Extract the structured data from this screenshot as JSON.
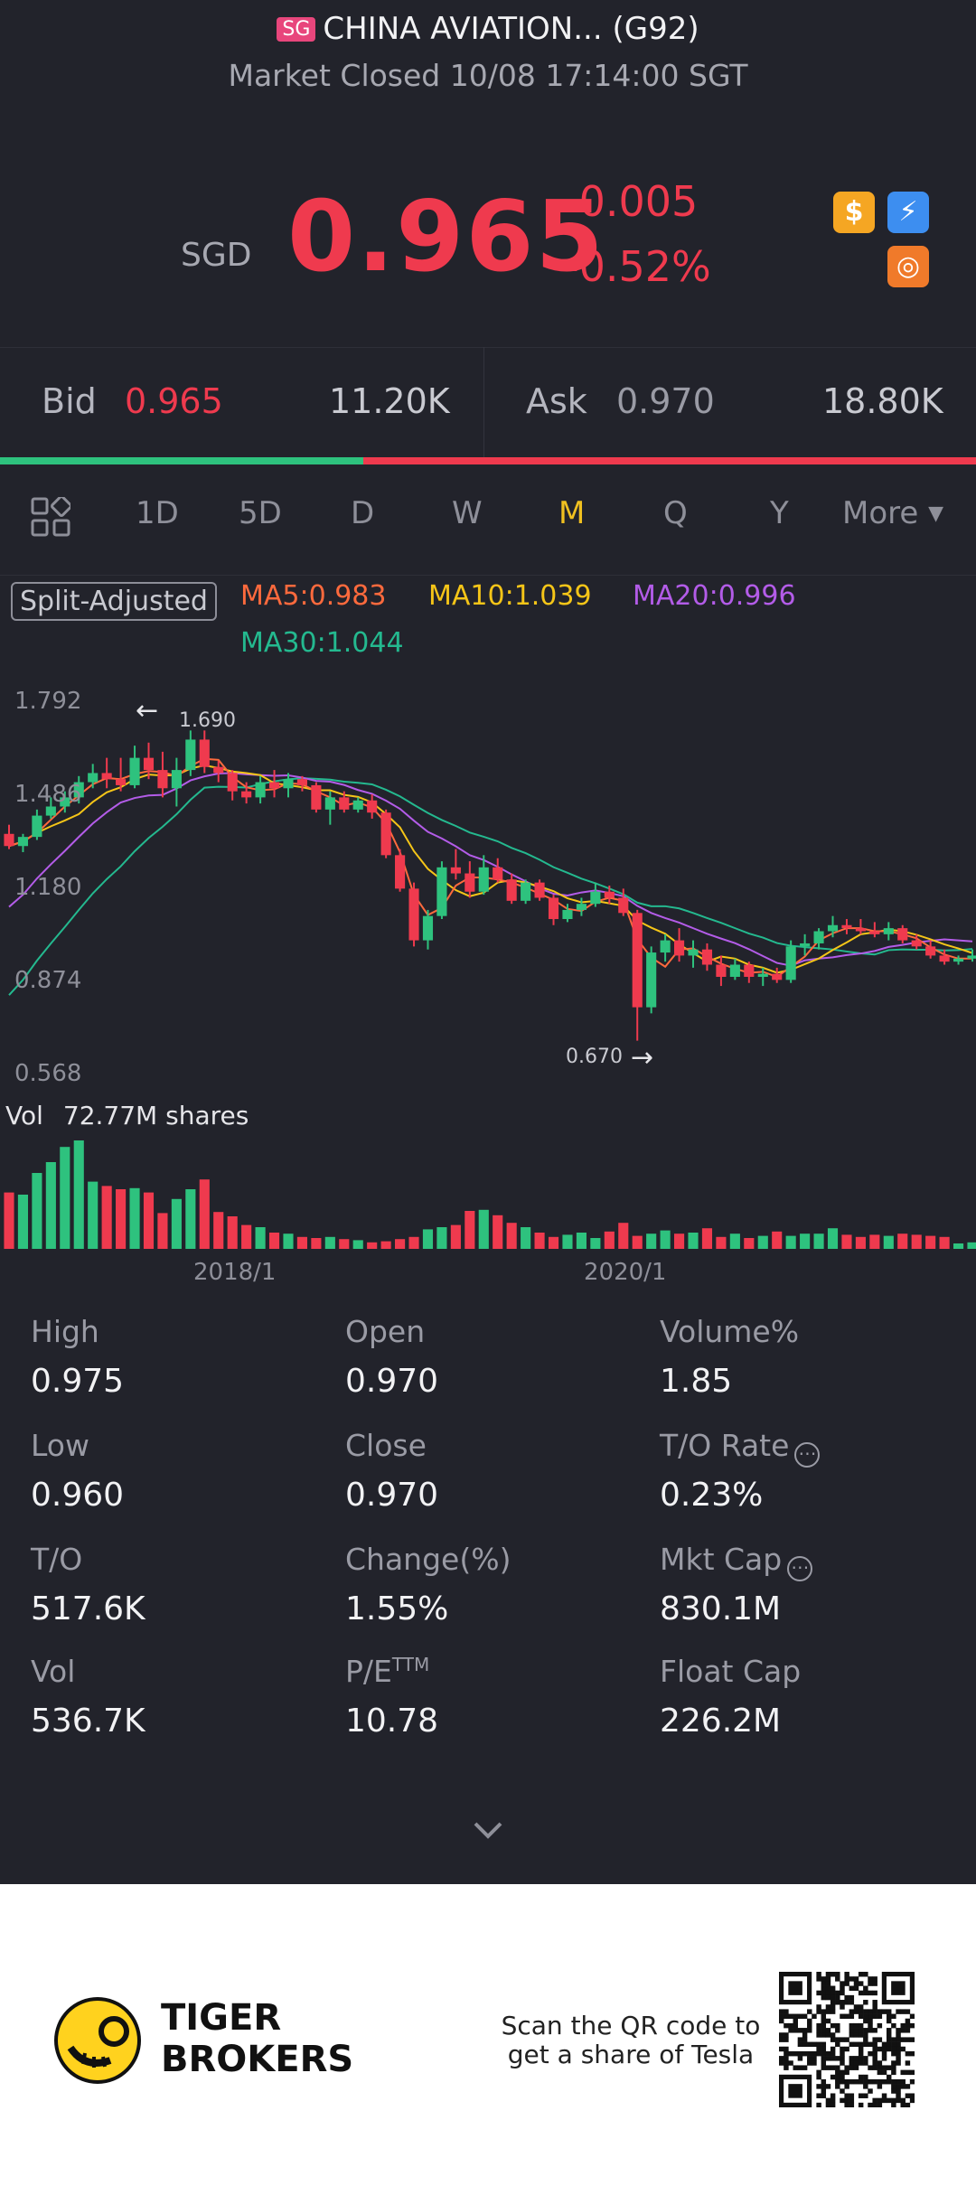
{
  "header": {
    "market_badge": "SG",
    "title": "CHINA AVIATION... (G92)",
    "status": "Market Closed 10/08 17:14:00 SGT"
  },
  "quote": {
    "currency": "SGD",
    "price": "0.965",
    "change": "-0.005",
    "change_pct": "-0.52%",
    "icons": [
      "dollar-icon",
      "flash-icon",
      "chart-switch-icon"
    ],
    "colors": {
      "down": "#ef3a4e",
      "up": "#2ec27e"
    }
  },
  "bidask": {
    "bid_label": "Bid",
    "bid_price": "0.965",
    "bid_size": "11.20K",
    "ask_label": "Ask",
    "ask_price": "0.970",
    "ask_size": "18.80K",
    "bid_ratio": 0.372
  },
  "tabs": {
    "items": [
      "1D",
      "5D",
      "D",
      "W",
      "M",
      "Q",
      "Y"
    ],
    "active": "M",
    "more": "More"
  },
  "indicators": {
    "split": "Split-Adjusted",
    "ma5": "MA5:0.983",
    "ma10": "MA10:1.039",
    "ma20": "MA20:0.996",
    "ma30": "MA30:1.044"
  },
  "chart_data": {
    "type": "candlestick",
    "y_ticks": [
      "1.792",
      "1.486",
      "1.180",
      "0.874",
      "0.568"
    ],
    "ylim": [
      0.568,
      1.792
    ],
    "high_marker": "1.690",
    "low_marker": "0.670",
    "vol_label": "Vol",
    "vol_value": "72.77M shares",
    "x_ticks": [
      "2018/1",
      "2020/1"
    ],
    "candles": [
      {
        "o": 1.35,
        "h": 1.38,
        "l": 1.3,
        "c": 1.31
      },
      {
        "o": 1.31,
        "h": 1.35,
        "l": 1.29,
        "c": 1.34
      },
      {
        "o": 1.34,
        "h": 1.43,
        "l": 1.33,
        "c": 1.41
      },
      {
        "o": 1.41,
        "h": 1.47,
        "l": 1.4,
        "c": 1.44
      },
      {
        "o": 1.44,
        "h": 1.49,
        "l": 1.42,
        "c": 1.47
      },
      {
        "o": 1.47,
        "h": 1.54,
        "l": 1.45,
        "c": 1.52
      },
      {
        "o": 1.52,
        "h": 1.58,
        "l": 1.5,
        "c": 1.55
      },
      {
        "o": 1.55,
        "h": 1.6,
        "l": 1.5,
        "c": 1.53
      },
      {
        "o": 1.53,
        "h": 1.6,
        "l": 1.49,
        "c": 1.51
      },
      {
        "o": 1.51,
        "h": 1.64,
        "l": 1.5,
        "c": 1.6
      },
      {
        "o": 1.6,
        "h": 1.65,
        "l": 1.53,
        "c": 1.56
      },
      {
        "o": 1.56,
        "h": 1.62,
        "l": 1.47,
        "c": 1.5
      },
      {
        "o": 1.5,
        "h": 1.6,
        "l": 1.44,
        "c": 1.56
      },
      {
        "o": 1.56,
        "h": 1.69,
        "l": 1.54,
        "c": 1.66
      },
      {
        "o": 1.66,
        "h": 1.69,
        "l": 1.55,
        "c": 1.57
      },
      {
        "o": 1.57,
        "h": 1.59,
        "l": 1.52,
        "c": 1.55
      },
      {
        "o": 1.55,
        "h": 1.56,
        "l": 1.46,
        "c": 1.49
      },
      {
        "o": 1.49,
        "h": 1.52,
        "l": 1.45,
        "c": 1.47
      },
      {
        "o": 1.47,
        "h": 1.54,
        "l": 1.45,
        "c": 1.52
      },
      {
        "o": 1.52,
        "h": 1.56,
        "l": 1.47,
        "c": 1.5
      },
      {
        "o": 1.5,
        "h": 1.55,
        "l": 1.47,
        "c": 1.53
      },
      {
        "o": 1.53,
        "h": 1.54,
        "l": 1.49,
        "c": 1.51
      },
      {
        "o": 1.51,
        "h": 1.52,
        "l": 1.42,
        "c": 1.43
      },
      {
        "o": 1.43,
        "h": 1.49,
        "l": 1.38,
        "c": 1.47
      },
      {
        "o": 1.47,
        "h": 1.49,
        "l": 1.42,
        "c": 1.43
      },
      {
        "o": 1.43,
        "h": 1.47,
        "l": 1.42,
        "c": 1.46
      },
      {
        "o": 1.46,
        "h": 1.48,
        "l": 1.4,
        "c": 1.42
      },
      {
        "o": 1.42,
        "h": 1.43,
        "l": 1.27,
        "c": 1.28
      },
      {
        "o": 1.28,
        "h": 1.3,
        "l": 1.16,
        "c": 1.17
      },
      {
        "o": 1.17,
        "h": 1.19,
        "l": 0.98,
        "c": 1.0
      },
      {
        "o": 1.0,
        "h": 1.1,
        "l": 0.97,
        "c": 1.08
      },
      {
        "o": 1.08,
        "h": 1.26,
        "l": 1.07,
        "c": 1.24
      },
      {
        "o": 1.24,
        "h": 1.3,
        "l": 1.2,
        "c": 1.22
      },
      {
        "o": 1.22,
        "h": 1.26,
        "l": 1.14,
        "c": 1.16
      },
      {
        "o": 1.16,
        "h": 1.28,
        "l": 1.15,
        "c": 1.24
      },
      {
        "o": 1.24,
        "h": 1.27,
        "l": 1.19,
        "c": 1.2
      },
      {
        "o": 1.2,
        "h": 1.22,
        "l": 1.12,
        "c": 1.13
      },
      {
        "o": 1.13,
        "h": 1.2,
        "l": 1.12,
        "c": 1.19
      },
      {
        "o": 1.19,
        "h": 1.2,
        "l": 1.13,
        "c": 1.14
      },
      {
        "o": 1.14,
        "h": 1.15,
        "l": 1.05,
        "c": 1.07
      },
      {
        "o": 1.07,
        "h": 1.12,
        "l": 1.06,
        "c": 1.1
      },
      {
        "o": 1.1,
        "h": 1.14,
        "l": 1.08,
        "c": 1.12
      },
      {
        "o": 1.12,
        "h": 1.19,
        "l": 1.11,
        "c": 1.16
      },
      {
        "o": 1.16,
        "h": 1.18,
        "l": 1.12,
        "c": 1.14
      },
      {
        "o": 1.14,
        "h": 1.17,
        "l": 1.08,
        "c": 1.09
      },
      {
        "o": 1.09,
        "h": 1.1,
        "l": 0.67,
        "c": 0.78
      },
      {
        "o": 0.78,
        "h": 0.98,
        "l": 0.76,
        "c": 0.96
      },
      {
        "o": 0.96,
        "h": 1.02,
        "l": 0.93,
        "c": 1.0
      },
      {
        "o": 1.0,
        "h": 1.04,
        "l": 0.93,
        "c": 0.95
      },
      {
        "o": 0.95,
        "h": 1.0,
        "l": 0.91,
        "c": 0.97
      },
      {
        "o": 0.97,
        "h": 0.99,
        "l": 0.9,
        "c": 0.92
      },
      {
        "o": 0.92,
        "h": 0.95,
        "l": 0.85,
        "c": 0.88
      },
      {
        "o": 0.88,
        "h": 0.94,
        "l": 0.87,
        "c": 0.92
      },
      {
        "o": 0.92,
        "h": 0.93,
        "l": 0.86,
        "c": 0.88
      },
      {
        "o": 0.88,
        "h": 0.91,
        "l": 0.85,
        "c": 0.89
      },
      {
        "o": 0.89,
        "h": 0.91,
        "l": 0.86,
        "c": 0.87
      },
      {
        "o": 0.87,
        "h": 1.0,
        "l": 0.86,
        "c": 0.98
      },
      {
        "o": 0.98,
        "h": 1.02,
        "l": 0.95,
        "c": 0.99
      },
      {
        "o": 0.99,
        "h": 1.04,
        "l": 0.97,
        "c": 1.03
      },
      {
        "o": 1.03,
        "h": 1.08,
        "l": 1.01,
        "c": 1.05
      },
      {
        "o": 1.05,
        "h": 1.07,
        "l": 1.02,
        "c": 1.04
      },
      {
        "o": 1.04,
        "h": 1.07,
        "l": 1.02,
        "c": 1.03
      },
      {
        "o": 1.03,
        "h": 1.06,
        "l": 1.01,
        "c": 1.02
      },
      {
        "o": 1.02,
        "h": 1.06,
        "l": 1.0,
        "c": 1.04
      },
      {
        "o": 1.04,
        "h": 1.05,
        "l": 0.99,
        "c": 1.0
      },
      {
        "o": 1.0,
        "h": 1.02,
        "l": 0.97,
        "c": 0.98
      },
      {
        "o": 0.98,
        "h": 1.0,
        "l": 0.94,
        "c": 0.95
      },
      {
        "o": 0.95,
        "h": 0.97,
        "l": 0.92,
        "c": 0.93
      },
      {
        "o": 0.93,
        "h": 0.95,
        "l": 0.92,
        "c": 0.94
      },
      {
        "o": 0.94,
        "h": 0.97,
        "l": 0.93,
        "c": 0.95
      }
    ],
    "volumes": [
      0.52,
      0.5,
      0.7,
      0.8,
      0.94,
      1.0,
      0.62,
      0.58,
      0.55,
      0.56,
      0.52,
      0.33,
      0.46,
      0.55,
      0.64,
      0.34,
      0.3,
      0.22,
      0.2,
      0.15,
      0.14,
      0.11,
      0.1,
      0.11,
      0.09,
      0.08,
      0.06,
      0.07,
      0.09,
      0.11,
      0.18,
      0.2,
      0.22,
      0.35,
      0.36,
      0.31,
      0.24,
      0.2,
      0.15,
      0.11,
      0.13,
      0.15,
      0.1,
      0.16,
      0.24,
      0.12,
      0.14,
      0.17,
      0.14,
      0.15,
      0.19,
      0.11,
      0.14,
      0.1,
      0.12,
      0.16,
      0.12,
      0.14,
      0.14,
      0.19,
      0.13,
      0.11,
      0.13,
      0.12,
      0.14,
      0.13,
      0.12,
      0.11,
      0.05,
      0.06
    ],
    "ma_colors": {
      "ma5": "#ff6a3d",
      "ma10": "#f5c518",
      "ma20": "#b35ce8",
      "ma30": "#24b98f"
    }
  },
  "stats": [
    {
      "label": "High",
      "value": "0.975"
    },
    {
      "label": "Open",
      "value": "0.970"
    },
    {
      "label": "Volume%",
      "value": "1.85"
    },
    {
      "label": "Low",
      "value": "0.960"
    },
    {
      "label": "Close",
      "value": "0.970"
    },
    {
      "label": "T/O Rate",
      "value": "0.23%",
      "info": true
    },
    {
      "label": "T/O",
      "value": "517.6K"
    },
    {
      "label": "Change(%)",
      "value": "1.55%"
    },
    {
      "label": "Mkt Cap",
      "value": "830.1M",
      "info": true
    },
    {
      "label": "Vol",
      "value": "536.7K"
    },
    {
      "label": "P/E",
      "label_sup": "TTM",
      "value": "10.78"
    },
    {
      "label": "Float Cap",
      "value": "226.2M"
    }
  ],
  "footer": {
    "brand_line1": "TIGER",
    "brand_line2": "BROKERS",
    "promo": "Scan the QR code to get a share of Tesla"
  }
}
